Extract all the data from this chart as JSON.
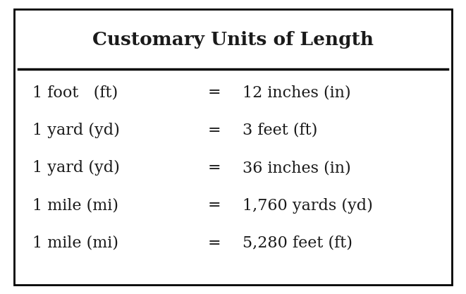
{
  "title": "Customary Units of Length",
  "rows": [
    {
      "left": "1 foot   (ft)",
      "eq": "=",
      "right": "12 inches (in)"
    },
    {
      "left": "1 yard (yd)",
      "eq": "=",
      "right": "3 feet (ft)"
    },
    {
      "left": "1 yard (yd)",
      "eq": "=",
      "right": "36 inches (in)"
    },
    {
      "left": "1 mile (mi)",
      "eq": "=",
      "right": "1,760 yards (yd)"
    },
    {
      "left": "1 mile (mi)",
      "eq": "=",
      "right": "5,280 feet (ft)"
    }
  ],
  "bg_color": "#ffffff",
  "border_color": "#000000",
  "text_color": "#1a1a1a",
  "title_fontsize": 19,
  "row_fontsize": 16,
  "fig_width": 6.61,
  "fig_height": 4.17,
  "dpi": 100
}
